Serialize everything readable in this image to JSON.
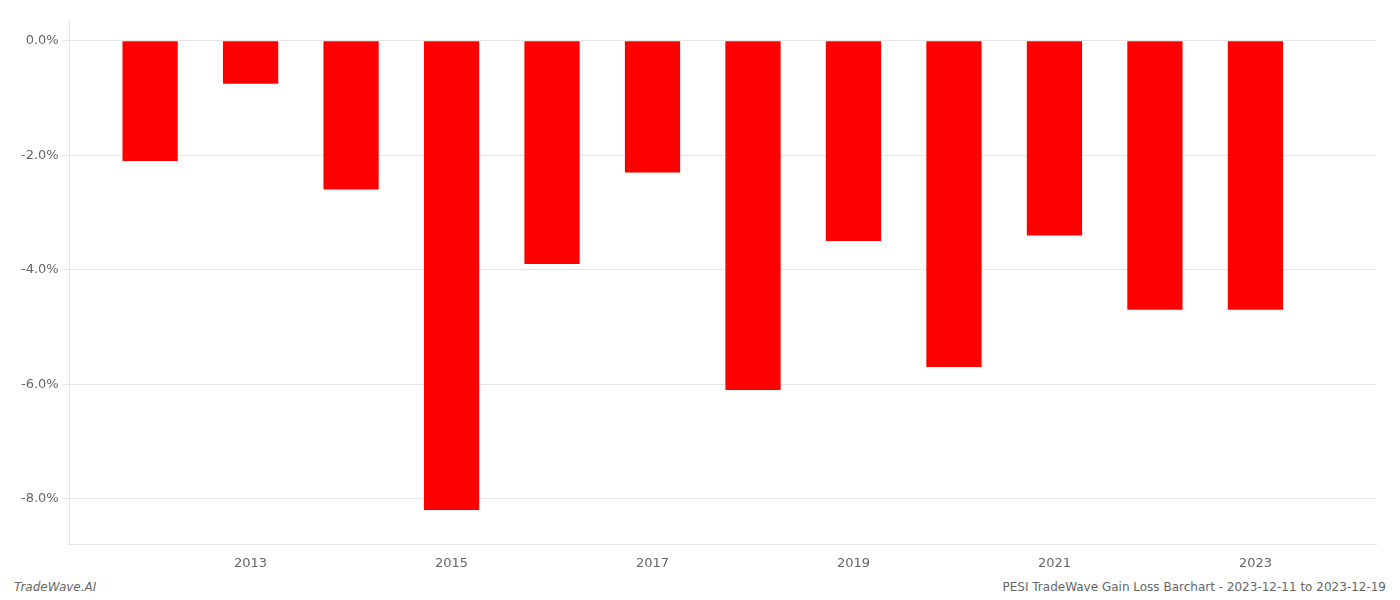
{
  "chart_data": {
    "type": "bar",
    "x": [
      2012,
      2013,
      2014,
      2015,
      2016,
      2017,
      2018,
      2019,
      2020,
      2021,
      2022,
      2023
    ],
    "values": [
      -2.1,
      -0.75,
      -2.6,
      -8.2,
      -3.9,
      -2.3,
      -6.1,
      -3.5,
      -5.7,
      -3.4,
      -4.7,
      -4.7
    ],
    "color": "#ff0000",
    "xlim": [
      2011.2,
      2024.2
    ],
    "xticks": [
      2013,
      2015,
      2017,
      2019,
      2021,
      2023
    ],
    "ylim": [
      -8.8,
      0.35
    ],
    "yticks": [
      {
        "value": 0.0,
        "label": "0.0%"
      },
      {
        "value": -2.0,
        "label": "-2.0%"
      },
      {
        "value": -4.0,
        "label": "-4.0%"
      },
      {
        "value": -6.0,
        "label": "-6.0%"
      },
      {
        "value": -8.0,
        "label": "-8.0%"
      }
    ],
    "grid": "y",
    "annotations": [
      "TradeWave.AI",
      "PESI TradeWave Gain Loss Barchart - 2023-12-11 to 2023-12-19"
    ]
  }
}
